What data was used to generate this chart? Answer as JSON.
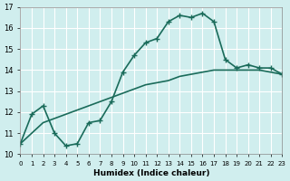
{
  "xlabel": "Humidex (Indice chaleur)",
  "line1_x": [
    0,
    1,
    2,
    3,
    4,
    5,
    6,
    7,
    8,
    9,
    10,
    11,
    12,
    13,
    14,
    15,
    16,
    17,
    18,
    19,
    20,
    21,
    22,
    23
  ],
  "line1_y": [
    10.5,
    11.9,
    12.3,
    11.0,
    10.4,
    10.5,
    11.5,
    11.6,
    12.5,
    13.9,
    14.7,
    15.3,
    15.5,
    16.3,
    16.6,
    16.5,
    16.7,
    16.3,
    14.5,
    14.1,
    14.25,
    14.1,
    14.1,
    13.8
  ],
  "line2_x": [
    0,
    1,
    2,
    3,
    4,
    5,
    6,
    7,
    8,
    9,
    10,
    11,
    12,
    13,
    14,
    15,
    16,
    17,
    18,
    19,
    20,
    21,
    22,
    23
  ],
  "line2_y": [
    10.5,
    11.0,
    11.5,
    11.7,
    11.9,
    12.1,
    12.3,
    12.5,
    12.7,
    12.9,
    13.1,
    13.3,
    13.4,
    13.5,
    13.7,
    13.8,
    13.9,
    14.0,
    14.0,
    14.0,
    14.0,
    14.0,
    13.9,
    13.8
  ],
  "line_color": "#1a6b5a",
  "bg_color": "#d0eeee",
  "grid_color": "#ffffff",
  "ylim": [
    10,
    17
  ],
  "xlim": [
    0,
    23
  ],
  "yticks": [
    10,
    11,
    12,
    13,
    14,
    15,
    16,
    17
  ],
  "xticks": [
    0,
    1,
    2,
    3,
    4,
    5,
    6,
    7,
    8,
    9,
    10,
    11,
    12,
    13,
    14,
    15,
    16,
    17,
    18,
    19,
    20,
    21,
    22,
    23
  ],
  "xtick_labels": [
    "0",
    "1",
    "2",
    "3",
    "4",
    "5",
    "6",
    "7",
    "8",
    "9",
    "10",
    "11",
    "12",
    "13",
    "14",
    "15",
    "16",
    "17",
    "18",
    "19",
    "20",
    "21",
    "22",
    "23"
  ],
  "marker": "+",
  "markersize": 4,
  "linewidth": 1.2
}
